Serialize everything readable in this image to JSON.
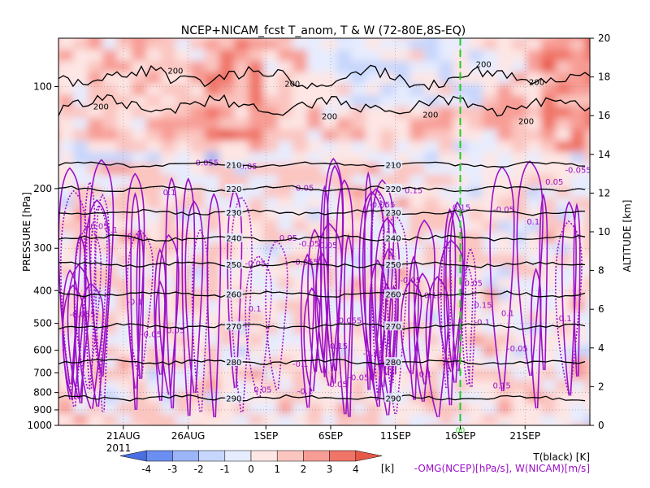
{
  "chart_data": {
    "type": "heatmap",
    "title": "NCEP+NICAM_fcst T_anom, T & W  (72-80E,8S-EQ)",
    "ylabel_left": "PRESSURE [hPa]",
    "ylabel_right": "ALTITUDE [km]",
    "year_label": "2011",
    "x_range": [
      "2011-08-16",
      "2011-09-26"
    ],
    "x_ticks": [
      "21AUG",
      "26AUG",
      "1SEP",
      "6SEP",
      "11SEP",
      "16SEP",
      "21SEP"
    ],
    "pressure_ticks": [
      100,
      200,
      300,
      400,
      500,
      600,
      700,
      800,
      900,
      1000
    ],
    "altitude_ticks": [
      0,
      2,
      4,
      6,
      8,
      10,
      12,
      14,
      16,
      18,
      20
    ],
    "altitude_range_km": [
      0,
      20
    ],
    "forecast_start": "2011-09-16",
    "forecast_marker_label": "00",
    "colorbar": {
      "ticks": [
        "-4",
        "-3",
        "-2",
        "-1",
        "0",
        "1",
        "2",
        "3",
        "4"
      ],
      "unit": "[k]",
      "colors": [
        "#4a6fe0",
        "#6b8ff0",
        "#9cb4f8",
        "#c7d6fc",
        "#e6ecfe",
        "#fde6e4",
        "#fbc5c0",
        "#f79d95",
        "#f07468",
        "#e85848"
      ]
    },
    "legend_lines": [
      {
        "text": "T(black) [K]",
        "color": "#000000"
      },
      {
        "text": "-OMG(NCEP)[hPa/s], W(NICAM)[m/s]",
        "color": "#9b10c8"
      }
    ],
    "temperature_contours": [
      {
        "label": "210",
        "pressure": 170
      },
      {
        "label": "220",
        "pressure": 200
      },
      {
        "label": "230",
        "pressure": 235
      },
      {
        "label": "240",
        "pressure": 280
      },
      {
        "label": "250",
        "pressure": 335
      },
      {
        "label": "260",
        "pressure": 410
      },
      {
        "label": "270",
        "pressure": 510
      },
      {
        "label": "280",
        "pressure": 650
      },
      {
        "label": "290",
        "pressure": 830
      }
    ],
    "tropopause_label": "200",
    "w_contour_label": "0.05",
    "w_contour_labels": [
      "0.05",
      "-0.05",
      "0.1",
      "-0.1",
      "0.15",
      "-0.055",
      "-0.05"
    ]
  }
}
